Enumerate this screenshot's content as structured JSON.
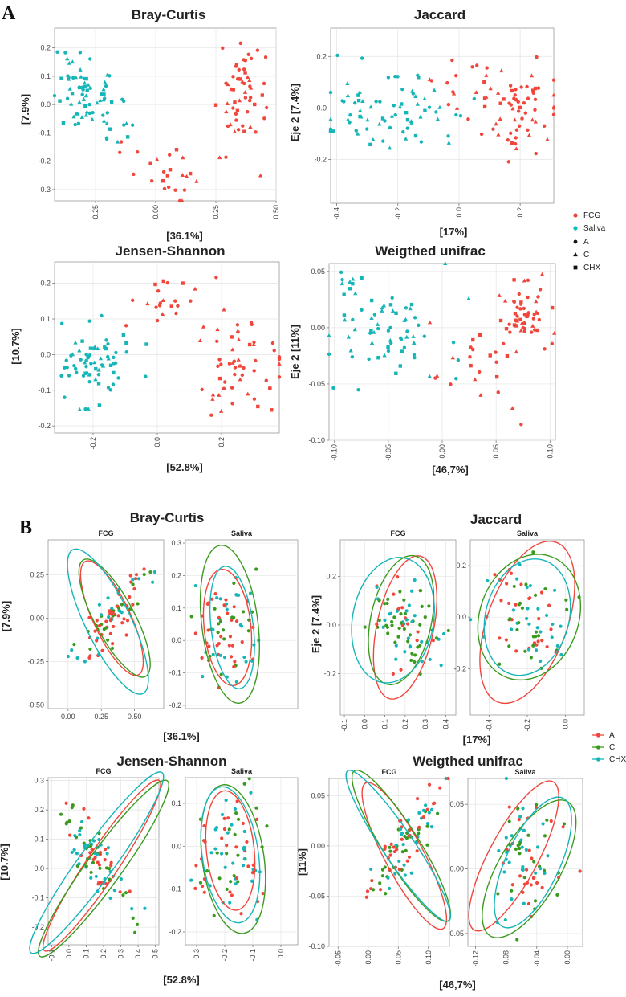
{
  "sections": {
    "A": "A",
    "B": "B"
  },
  "legend": {
    "groups": [
      {
        "name": "FCG",
        "color": "#f0463c"
      },
      {
        "name": "Saliva",
        "color": "#16b5b8"
      }
    ],
    "shapes": [
      {
        "name": "A",
        "shape": "circle"
      },
      {
        "name": "C",
        "shape": "triangle"
      },
      {
        "name": "CHX",
        "shape": "square"
      }
    ],
    "treatments": [
      {
        "name": "A",
        "color": "#f0463c"
      },
      {
        "name": "C",
        "color": "#3a9a1e"
      },
      {
        "name": "CHX",
        "color": "#16b5b8"
      }
    ]
  },
  "chart_data": [
    {
      "id": "A-bray-curtis",
      "type": "scatter",
      "title": "Bray-Curtis",
      "xlabel": "[36.1%]",
      "ylabel": "[7.9%]",
      "xlim": [
        -0.42,
        0.5
      ],
      "ylim": [
        -0.34,
        0.27
      ],
      "xticks": [
        -0.25,
        0,
        0.25,
        0.5
      ],
      "xticklabels": [
        "-0.25",
        "0.00",
        "0.25",
        "0.50"
      ],
      "yticks": [
        -0.3,
        -0.2,
        -0.1,
        0,
        0.1,
        0.2
      ],
      "yticklabels": [
        "-0.3",
        "-0.2",
        "-0.1",
        "0.0",
        "0.1",
        "0.2"
      ],
      "series": [
        {
          "name": "FCG",
          "shape_mix": [
            0.5,
            0.3,
            0.2
          ],
          "clusters": [
            {
              "cx": 0.37,
              "cy": 0.05,
              "sx": 0.055,
              "sy": 0.09,
              "n": 55
            },
            {
              "cx": 0.05,
              "cy": -0.24,
              "sx": 0.1,
              "sy": 0.05,
              "n": 26
            }
          ]
        },
        {
          "name": "Saliva",
          "shape_mix": [
            0.45,
            0.35,
            0.2
          ],
          "clusters": [
            {
              "cx": -0.3,
              "cy": 0.04,
              "sx": 0.06,
              "sy": 0.065,
              "n": 65
            },
            {
              "cx": -0.17,
              "cy": -0.1,
              "sx": 0.06,
              "sy": 0.05,
              "n": 12
            }
          ]
        }
      ]
    },
    {
      "id": "A-jaccard",
      "type": "scatter",
      "title": "Jaccard",
      "xlabel": "[17%]",
      "ylabel": "Eje 2 [7.4%]",
      "xlim": [
        -0.42,
        0.31
      ],
      "ylim": [
        -0.37,
        0.31
      ],
      "xticks": [
        -0.4,
        -0.2,
        0,
        0.2
      ],
      "xticklabels": [
        "-0.4",
        "-0.2",
        "0.0",
        "0.2"
      ],
      "yticks": [
        -0.2,
        0,
        0.2
      ],
      "yticklabels": [
        "-0.2",
        "0.0",
        "0.2"
      ],
      "series": [
        {
          "name": "FCG",
          "shape_mix": [
            0.55,
            0.3,
            0.15
          ],
          "clusters": [
            {
              "cx": 0.2,
              "cy": 0.0,
              "sx": 0.055,
              "sy": 0.09,
              "n": 60
            },
            {
              "cx": 0.02,
              "cy": 0.07,
              "sx": 0.08,
              "sy": 0.08,
              "n": 18
            }
          ]
        },
        {
          "name": "Saliva",
          "shape_mix": [
            0.45,
            0.35,
            0.2
          ],
          "clusters": [
            {
              "cx": -0.2,
              "cy": 0.0,
              "sx": 0.11,
              "sy": 0.09,
              "n": 75
            }
          ]
        }
      ]
    },
    {
      "id": "A-jensen-shannon",
      "type": "scatter",
      "title": "Jensen-Shannon",
      "xlabel": "[52.8%]",
      "ylabel": "[10.7%]",
      "xlim": [
        -0.32,
        0.38
      ],
      "ylim": [
        -0.22,
        0.26
      ],
      "xticks": [
        -0.2,
        0,
        0.2
      ],
      "xticklabels": [
        "-0.2",
        "0.0",
        "0.2"
      ],
      "yticks": [
        -0.2,
        -0.1,
        0,
        0.1,
        0.2
      ],
      "yticklabels": [
        "-0.2",
        "-0.1",
        "0.0",
        "0.1",
        "0.2"
      ],
      "series": [
        {
          "name": "FCG",
          "shape_mix": [
            0.55,
            0.3,
            0.15
          ],
          "clusters": [
            {
              "cx": 0.25,
              "cy": -0.04,
              "sx": 0.055,
              "sy": 0.055,
              "n": 55
            },
            {
              "cx": 0.05,
              "cy": 0.15,
              "sx": 0.07,
              "sy": 0.04,
              "n": 22
            }
          ]
        },
        {
          "name": "Saliva",
          "shape_mix": [
            0.45,
            0.35,
            0.2
          ],
          "clusters": [
            {
              "cx": -0.2,
              "cy": -0.02,
              "sx": 0.06,
              "sy": 0.055,
              "n": 70
            }
          ]
        }
      ]
    },
    {
      "id": "A-weighted-unifrac",
      "type": "scatter",
      "title": "Weigthed unifrac",
      "xlabel": "[46,7%]",
      "ylabel": "Eje 2 [11%]",
      "xlim": [
        -0.105,
        0.105
      ],
      "ylim": [
        -0.1,
        0.057
      ],
      "xticks": [
        -0.1,
        -0.05,
        0,
        0.05,
        0.1
      ],
      "xticklabels": [
        "-0.10",
        "-0.05",
        "0.00",
        "0.05",
        "0.10"
      ],
      "yticks": [
        -0.1,
        -0.05,
        0,
        0.05
      ],
      "yticklabels": [
        "-0.10",
        "-0.05",
        "0.00",
        "0.05"
      ],
      "series": [
        {
          "name": "FCG",
          "shape_mix": [
            0.6,
            0.25,
            0.15
          ],
          "clusters": [
            {
              "cx": 0.075,
              "cy": 0.01,
              "sx": 0.012,
              "sy": 0.015,
              "n": 55
            },
            {
              "cx": 0.02,
              "cy": -0.035,
              "sx": 0.025,
              "sy": 0.02,
              "n": 22
            }
          ]
        },
        {
          "name": "Saliva",
          "shape_mix": [
            0.45,
            0.35,
            0.2
          ],
          "clusters": [
            {
              "cx": -0.045,
              "cy": 0.0,
              "sx": 0.025,
              "sy": 0.02,
              "n": 65
            },
            {
              "cx": -0.09,
              "cy": 0.04,
              "sx": 0.01,
              "sy": 0.008,
              "n": 10
            }
          ]
        }
      ]
    },
    {
      "id": "B-bray-curtis",
      "type": "scatter",
      "title": "Bray-Curtis",
      "xlabel": "[36.1%]",
      "ylabel": "[7.9%]",
      "facets": [
        {
          "label": "FCG",
          "xlim": [
            -0.15,
            0.72
          ],
          "ylim": [
            -0.52,
            0.45
          ],
          "xticks": [
            0,
            0.25,
            0.5
          ],
          "xticklabels": [
            "0.00",
            "0.25",
            "0.50"
          ],
          "yticks": [
            -0.5,
            -0.25,
            0,
            0.25
          ],
          "yticklabels": [
            "-0.50",
            "-0.25",
            "0.00",
            "0.25"
          ],
          "cloud": {
            "cx": 0.32,
            "cy": -0.02,
            "sx": 0.13,
            "sy": 0.15,
            "rho": 0.8,
            "n": 85
          },
          "ellipses": [
            {
              "group": "A",
              "cx": 0.33,
              "cy": 0.0,
              "rx": 0.14,
              "ry": 0.36,
              "angle": -25
            },
            {
              "group": "C",
              "cx": 0.35,
              "cy": 0.0,
              "rx": 0.15,
              "ry": 0.38,
              "angle": -28
            },
            {
              "group": "CHX",
              "cx": 0.3,
              "cy": -0.02,
              "rx": 0.17,
              "ry": 0.46,
              "angle": -26
            }
          ]
        },
        {
          "label": "Saliva",
          "xlim": [
            -0.47,
            0.01
          ],
          "ylim": [
            -0.21,
            0.31
          ],
          "xticks": [],
          "xticklabels": [],
          "yticks": [
            -0.2,
            -0.1,
            0,
            0.1,
            0.2,
            0.3
          ],
          "yticklabels": [
            "-0.2",
            "-0.1",
            "0.0",
            "0.1",
            "0.2",
            "0.3"
          ],
          "cloud": {
            "cx": -0.29,
            "cy": 0.03,
            "sx": 0.06,
            "sy": 0.08,
            "rho": 0.1,
            "n": 80
          },
          "ellipses": [
            {
              "group": "A",
              "cx": -0.29,
              "cy": 0.04,
              "rx": 0.1,
              "ry": 0.18,
              "angle": -6
            },
            {
              "group": "C",
              "cx": -0.28,
              "cy": 0.05,
              "rx": 0.12,
              "ry": 0.245,
              "angle": -7
            },
            {
              "group": "CHX",
              "cx": -0.27,
              "cy": 0.04,
              "rx": 0.09,
              "ry": 0.19,
              "angle": -7
            }
          ]
        }
      ]
    },
    {
      "id": "B-jaccard",
      "type": "scatter",
      "title": "Jaccard",
      "xlabel": "[17%]",
      "ylabel": "Eje 2 [7.4%]",
      "facets": [
        {
          "label": "FCG",
          "xlim": [
            -0.12,
            0.45
          ],
          "ylim": [
            -0.37,
            0.35
          ],
          "xticks": [
            -0.1,
            0,
            0.1,
            0.2,
            0.3,
            0.4
          ],
          "xticklabels": [
            "-0.1",
            "0.0",
            "0.1",
            "0.2",
            "0.3",
            "0.4"
          ],
          "yticks": [
            -0.2,
            0,
            0.2
          ],
          "yticklabels": [
            "-0.2",
            "0.0",
            "0.2"
          ],
          "cloud": {
            "cx": 0.2,
            "cy": 0.0,
            "sx": 0.08,
            "sy": 0.1,
            "rho": -0.3,
            "n": 85
          },
          "ellipses": [
            {
              "group": "A",
              "cx": 0.2,
              "cy": -0.01,
              "rx": 0.14,
              "ry": 0.3,
              "angle": 12
            },
            {
              "group": "C",
              "cx": 0.18,
              "cy": 0.02,
              "rx": 0.15,
              "ry": 0.27,
              "angle": 12
            },
            {
              "group": "CHX",
              "cx": 0.14,
              "cy": 0.02,
              "rx": 0.2,
              "ry": 0.26,
              "angle": 10
            }
          ]
        },
        {
          "label": "Saliva",
          "xlim": [
            -0.5,
            0.1
          ],
          "ylim": [
            -0.38,
            0.3
          ],
          "xticks": [
            -0.4,
            -0.2,
            0
          ],
          "xticklabels": [
            "-0.4",
            "-0.2",
            "0.0"
          ],
          "yticks": [
            -0.2,
            0,
            0.2
          ],
          "yticklabels": [
            "-0.2",
            "0.0",
            "0.2"
          ],
          "cloud": {
            "cx": -0.2,
            "cy": 0.0,
            "sx": 0.11,
            "sy": 0.09,
            "rho": -0.2,
            "n": 80
          },
          "ellipses": [
            {
              "group": "A",
              "cx": -0.2,
              "cy": -0.02,
              "rx": 0.21,
              "ry": 0.33,
              "angle": 20
            },
            {
              "group": "C",
              "cx": -0.19,
              "cy": 0.0,
              "rx": 0.26,
              "ry": 0.25,
              "angle": 20
            },
            {
              "group": "CHX",
              "cx": -0.2,
              "cy": 0.0,
              "rx": 0.22,
              "ry": 0.23,
              "angle": 15
            }
          ]
        }
      ]
    },
    {
      "id": "B-jensen-shannon",
      "type": "scatter",
      "title": "Jensen-Shannon",
      "xlabel": "[52.8%]",
      "ylabel": "[10.7%]",
      "facets": [
        {
          "label": "FCG",
          "xlim": [
            -0.12,
            0.52
          ],
          "ylim": [
            -0.26,
            0.31
          ],
          "xticks": [
            -0.1,
            0,
            0.1,
            0.2,
            0.3,
            0.4,
            0.5
          ],
          "xticklabels": [
            "-0.1",
            "0.0",
            "0.1",
            "0.2",
            "0.3",
            "0.4",
            "0.5"
          ],
          "yticks": [
            -0.2,
            -0.1,
            0,
            0.1,
            0.2,
            0.3
          ],
          "yticklabels": [
            "-0.2",
            "-0.1",
            "0.0",
            "0.1",
            "0.2",
            "0.3"
          ],
          "cloud": {
            "cx": 0.17,
            "cy": 0.02,
            "sx": 0.1,
            "sy": 0.09,
            "rho": -0.82,
            "n": 90
          },
          "ellipses": [
            {
              "group": "A",
              "cx": 0.19,
              "cy": 0.01,
              "rx": 0.09,
              "ry": 0.35,
              "angle": 34
            },
            {
              "group": "C",
              "cx": 0.2,
              "cy": 0.0,
              "rx": 0.1,
              "ry": 0.37,
              "angle": 36
            },
            {
              "group": "CHX",
              "cx": 0.16,
              "cy": 0.02,
              "rx": 0.1,
              "ry": 0.38,
              "angle": 36
            }
          ]
        },
        {
          "label": "Saliva",
          "xlim": [
            -0.34,
            0.06
          ],
          "ylim": [
            -0.23,
            0.16
          ],
          "xticks": [
            -0.3,
            -0.2,
            -0.1,
            0
          ],
          "xticklabels": [
            "-0.3",
            "-0.2",
            "-0.1",
            "0.0"
          ],
          "yticks": [
            -0.2,
            -0.1,
            0,
            0.1
          ],
          "yticklabels": [
            "-0.2",
            "-0.1",
            "0.0",
            "0.1"
          ],
          "cloud": {
            "cx": -0.18,
            "cy": -0.02,
            "sx": 0.06,
            "sy": 0.07,
            "rho": 0.0,
            "n": 80
          },
          "ellipses": [
            {
              "group": "A",
              "cx": -0.18,
              "cy": -0.01,
              "rx": 0.085,
              "ry": 0.14,
              "angle": -6
            },
            {
              "group": "C",
              "cx": -0.17,
              "cy": -0.03,
              "rx": 0.11,
              "ry": 0.175,
              "angle": -8
            },
            {
              "group": "CHX",
              "cx": -0.18,
              "cy": -0.02,
              "rx": 0.1,
              "ry": 0.16,
              "angle": -8
            }
          ]
        }
      ]
    },
    {
      "id": "B-weighted-unifrac",
      "type": "scatter",
      "title": "Weigthed unifrac",
      "xlabel": "[46,7%]",
      "ylabel": "[11%]",
      "facets": [
        {
          "label": "FCG",
          "xlim": [
            -0.065,
            0.135
          ],
          "ylim": [
            -0.1,
            0.067
          ],
          "xticks": [
            -0.05,
            0,
            0.05,
            0.1
          ],
          "xticklabels": [
            "-0.05",
            "0.00",
            "0.05",
            "0.10"
          ],
          "yticks": [
            -0.1,
            -0.05,
            0,
            0.05
          ],
          "yticklabels": [
            "-0.10",
            "-0.05",
            "0.00",
            "0.05"
          ],
          "cloud": {
            "cx": 0.06,
            "cy": 0.0,
            "sx": 0.03,
            "sy": 0.025,
            "rho": 0.8,
            "n": 90
          },
          "ellipses": [
            {
              "group": "A",
              "cx": 0.06,
              "cy": -0.01,
              "rx": 0.032,
              "ry": 0.082,
              "angle": -28
            },
            {
              "group": "C",
              "cx": 0.055,
              "cy": 0.0,
              "rx": 0.03,
              "ry": 0.088,
              "angle": -32
            },
            {
              "group": "CHX",
              "cx": 0.05,
              "cy": 0.0,
              "rx": 0.026,
              "ry": 0.09,
              "angle": -34
            }
          ]
        },
        {
          "label": "Saliva",
          "xlim": [
            -0.13,
            0.02
          ],
          "ylim": [
            -0.06,
            0.07
          ],
          "xticks": [
            -0.12,
            -0.08,
            -0.04,
            0
          ],
          "xticklabels": [
            "-0.12",
            "-0.08",
            "-0.04",
            "0.00"
          ],
          "yticks": [
            -0.05,
            0,
            0.05
          ],
          "yticklabels": [
            "-0.05",
            "0.00",
            "0.05"
          ],
          "cloud": {
            "cx": -0.055,
            "cy": 0.005,
            "sx": 0.025,
            "sy": 0.025,
            "rho": 0.0,
            "n": 80
          },
          "ellipses": [
            {
              "group": "A",
              "cx": -0.07,
              "cy": 0.01,
              "rx": 0.032,
              "ry": 0.065,
              "angle": 28
            },
            {
              "group": "C",
              "cx": -0.05,
              "cy": 0.0,
              "rx": 0.04,
              "ry": 0.06,
              "angle": 30
            },
            {
              "group": "CHX",
              "cx": -0.045,
              "cy": 0.005,
              "rx": 0.035,
              "ry": 0.055,
              "angle": 25
            }
          ]
        }
      ]
    }
  ]
}
